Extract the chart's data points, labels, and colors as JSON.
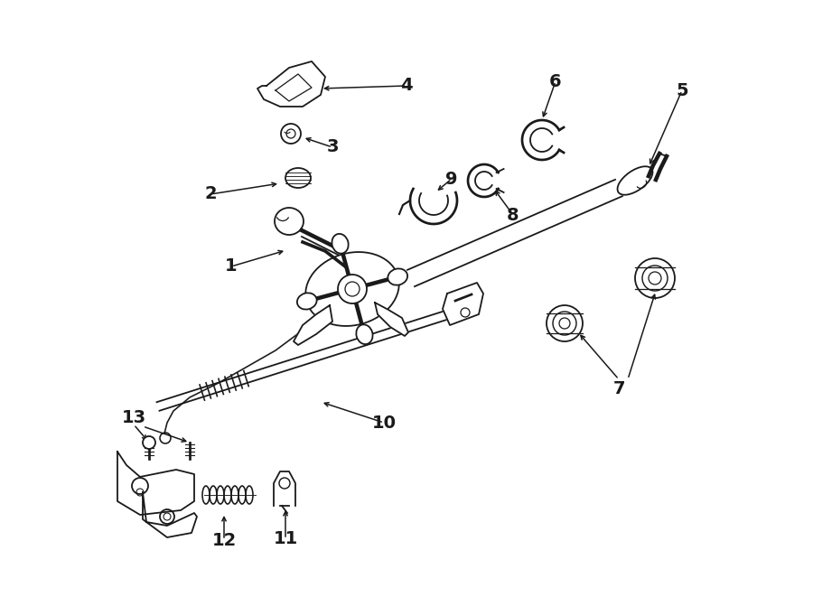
{
  "bg_color": "#ffffff",
  "lc": "#1a1a1a",
  "lw": 1.3,
  "fig_width": 9.0,
  "fig_height": 6.61,
  "dpi": 100
}
